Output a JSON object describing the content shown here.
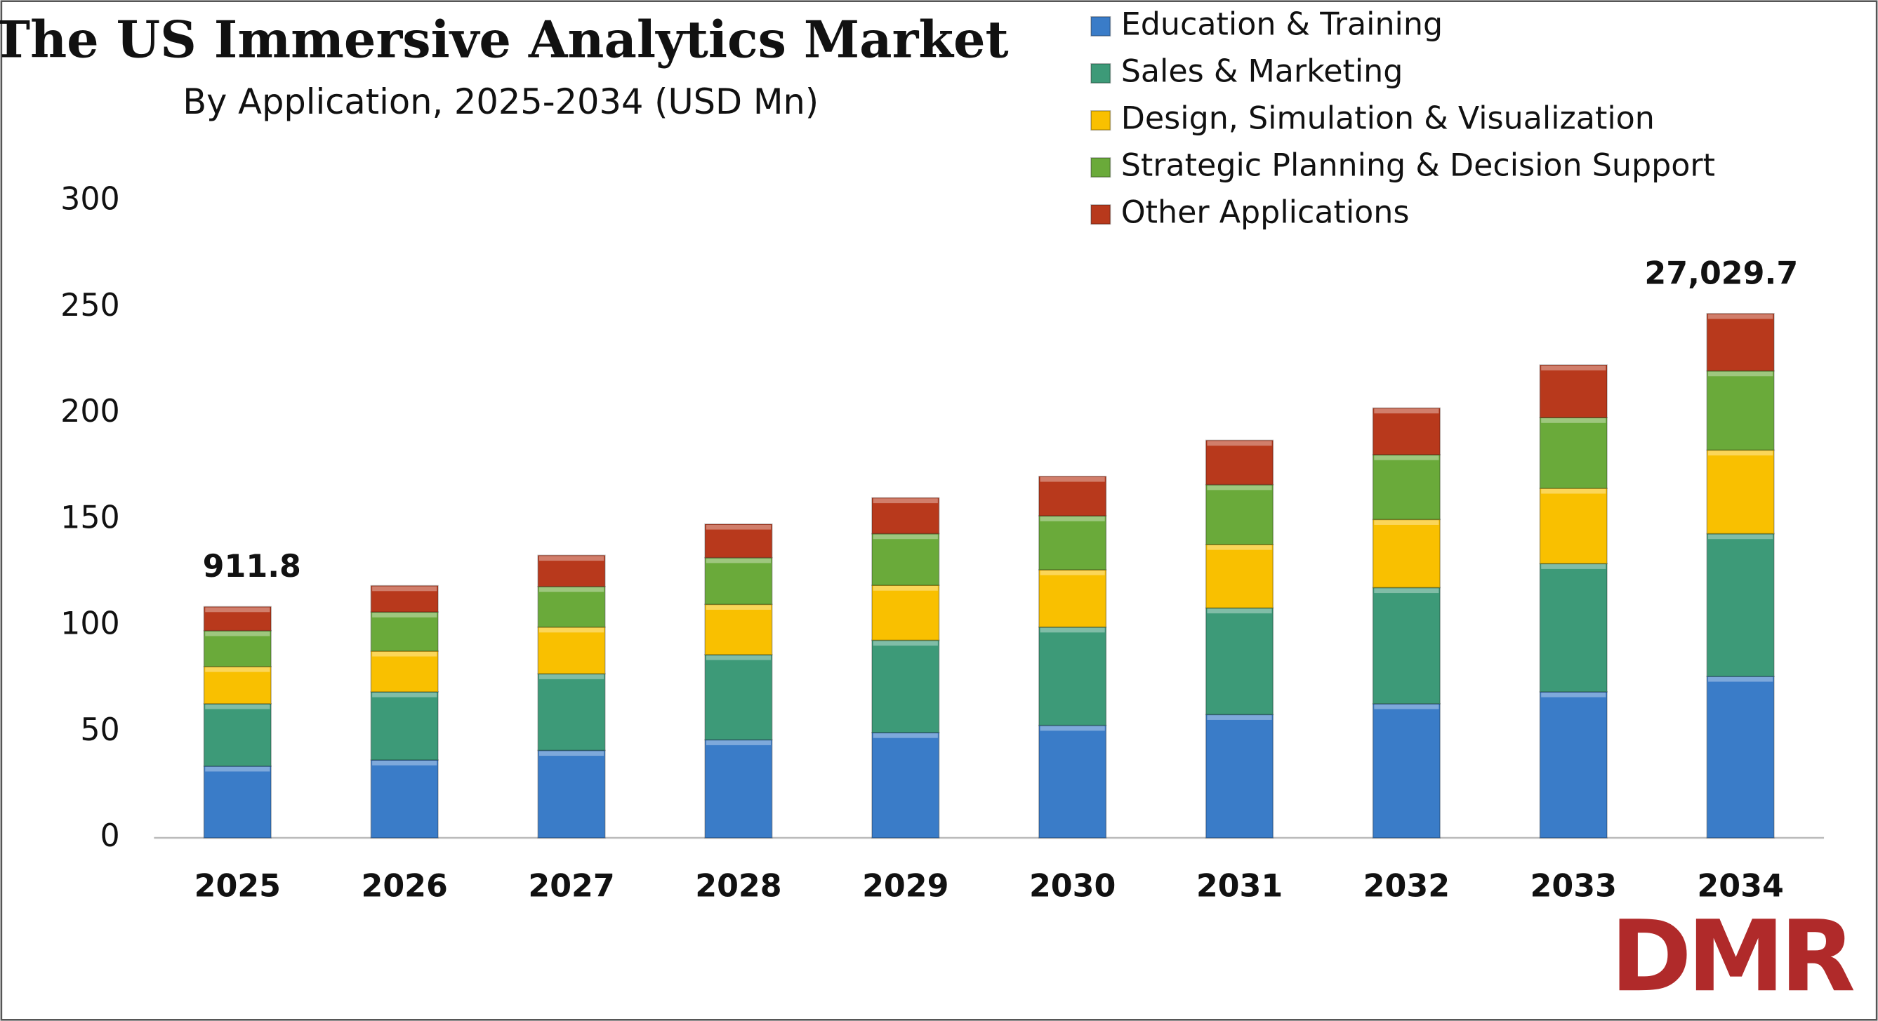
{
  "chart_data": {
    "type": "stacked_bar",
    "title": "The US Immersive Analytics Market",
    "subtitle": "By Application, 2025-2034 (USD Mn)",
    "categories": [
      "2025",
      "2026",
      "2027",
      "2028",
      "2029",
      "2030",
      "2031",
      "2032",
      "2033",
      "2034"
    ],
    "series": [
      {
        "name": "Education & Training",
        "color": "#3a7cc8",
        "values": [
          33.8,
          36.7,
          41.2,
          46.2,
          49.6,
          53,
          58.1,
          63.2,
          68.8,
          76.1
        ]
      },
      {
        "name": "Sales & Marketing",
        "color": "#3d9a78",
        "values": [
          29.4,
          32.1,
          36.1,
          40.1,
          43.5,
          46.3,
          50.2,
          54.7,
          60.4,
          67.2
        ]
      },
      {
        "name": "Design, Simulation & Visualization",
        "color": "#f9c000",
        "values": [
          17.5,
          19.2,
          22,
          23.7,
          25.9,
          27,
          29.9,
          32.1,
          35.5,
          39.4
        ]
      },
      {
        "name": "Strategic Planning & Decision Support",
        "color": "#6aaa3a",
        "values": [
          16.9,
          18.4,
          19.1,
          22,
          24.3,
          25.4,
          28.2,
          30.5,
          33.3,
          37.3
        ]
      },
      {
        "name": "Other Applications",
        "color": "#b8391c",
        "values": [
          11.3,
          12.4,
          14.7,
          15.8,
          16.9,
          18.6,
          20.9,
          22,
          24.8,
          27
        ]
      }
    ],
    "annotations": [
      "911.8",
      "27,029.7"
    ],
    "ylim": [
      0,
      300
    ],
    "yticks": [
      0,
      50,
      100,
      150,
      200,
      250,
      300
    ],
    "grid": false,
    "legend": "top-right",
    "logo": "DMR"
  }
}
